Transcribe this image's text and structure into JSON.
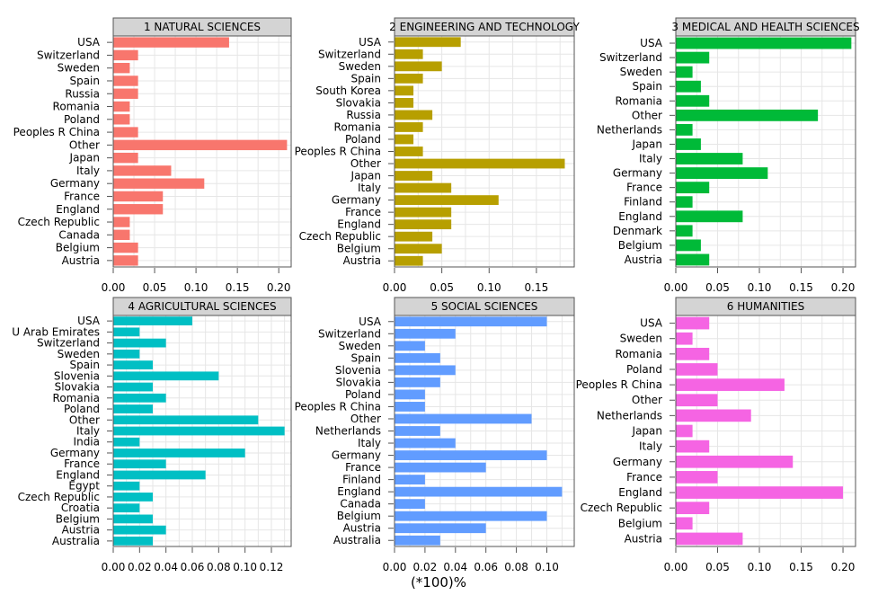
{
  "footer_label": "(*100)%",
  "colors": {
    "strip_bg": "#d4d4d4",
    "strip_border": "#555555",
    "grid": "#e6e6e6",
    "axis": "#555555"
  },
  "chart_data": [
    {
      "type": "bar",
      "orientation": "horizontal",
      "title": "1 NATURAL SCIENCES",
      "color": "#f8766d",
      "xlim": [
        0,
        0.215
      ],
      "xticks": [
        0,
        0.05,
        0.1,
        0.15,
        0.2
      ],
      "xtick_labels": [
        "0.00",
        "0.05",
        "0.10",
        "0.15",
        "0.20"
      ],
      "categories": [
        "USA",
        "Switzerland",
        "Sweden",
        "Spain",
        "Russia",
        "Romania",
        "Poland",
        "Peoples R China",
        "Other",
        "Japan",
        "Italy",
        "Germany",
        "France",
        "England",
        "Czech Republic",
        "Canada",
        "Belgium",
        "Austria"
      ],
      "values": [
        0.14,
        0.03,
        0.02,
        0.03,
        0.03,
        0.02,
        0.02,
        0.03,
        0.21,
        0.03,
        0.07,
        0.11,
        0.06,
        0.06,
        0.02,
        0.02,
        0.03,
        0.03
      ]
    },
    {
      "type": "bar",
      "orientation": "horizontal",
      "title": "2 ENGINEERING AND TECHNOLOGY",
      "color": "#b79f00",
      "xlim": [
        0,
        0.19
      ],
      "xticks": [
        0,
        0.05,
        0.1,
        0.15
      ],
      "xtick_labels": [
        "0.00",
        "0.05",
        "0.10",
        "0.15"
      ],
      "categories": [
        "USA",
        "Switzerland",
        "Sweden",
        "Spain",
        "South Korea",
        "Slovakia",
        "Russia",
        "Romania",
        "Poland",
        "Peoples R China",
        "Other",
        "Japan",
        "Italy",
        "Germany",
        "France",
        "England",
        "Czech Republic",
        "Belgium",
        "Austria"
      ],
      "values": [
        0.07,
        0.03,
        0.05,
        0.03,
        0.02,
        0.02,
        0.04,
        0.03,
        0.02,
        0.03,
        0.18,
        0.04,
        0.06,
        0.11,
        0.06,
        0.06,
        0.04,
        0.05,
        0.03
      ]
    },
    {
      "type": "bar",
      "orientation": "horizontal",
      "title": "3 MEDICAL AND HEALTH SCIENCES",
      "color": "#00ba38",
      "xlim": [
        0,
        0.215
      ],
      "xticks": [
        0,
        0.05,
        0.1,
        0.15,
        0.2
      ],
      "xtick_labels": [
        "0.00",
        "0.05",
        "0.10",
        "0.15",
        "0.20"
      ],
      "categories": [
        "USA",
        "Switzerland",
        "Sweden",
        "Spain",
        "Romania",
        "Other",
        "Netherlands",
        "Japan",
        "Italy",
        "Germany",
        "France",
        "Finland",
        "England",
        "Denmark",
        "Belgium",
        "Austria"
      ],
      "values": [
        0.21,
        0.04,
        0.02,
        0.03,
        0.04,
        0.17,
        0.02,
        0.03,
        0.08,
        0.11,
        0.04,
        0.02,
        0.08,
        0.02,
        0.03,
        0.04
      ]
    },
    {
      "type": "bar",
      "orientation": "horizontal",
      "title": "4 AGRICULTURAL SCIENCES",
      "color": "#00bfc4",
      "xlim": [
        0,
        0.135
      ],
      "xticks": [
        0,
        0.02,
        0.04,
        0.06,
        0.08,
        0.1,
        0.12
      ],
      "xtick_labels": [
        "0.00",
        "0.02",
        "0.04",
        "0.06",
        "0.08",
        "0.10",
        "0.12"
      ],
      "categories": [
        "USA",
        "U Arab Emirates",
        "Switzerland",
        "Sweden",
        "Spain",
        "Slovenia",
        "Slovakia",
        "Romania",
        "Poland",
        "Other",
        "Italy",
        "India",
        "Germany",
        "France",
        "England",
        "Egypt",
        "Czech Republic",
        "Croatia",
        "Belgium",
        "Austria",
        "Australia"
      ],
      "values": [
        0.06,
        0.02,
        0.04,
        0.02,
        0.03,
        0.08,
        0.03,
        0.04,
        0.03,
        0.11,
        0.13,
        0.02,
        0.1,
        0.04,
        0.07,
        0.02,
        0.03,
        0.02,
        0.03,
        0.04,
        0.03
      ]
    },
    {
      "type": "bar",
      "orientation": "horizontal",
      "title": "5 SOCIAL SCIENCES",
      "color": "#619cff",
      "xlim": [
        0,
        0.118
      ],
      "xticks": [
        0,
        0.02,
        0.04,
        0.06,
        0.08,
        0.1
      ],
      "xtick_labels": [
        "0.00",
        "0.02",
        "0.04",
        "0.06",
        "0.08",
        "0.10"
      ],
      "categories": [
        "USA",
        "Switzerland",
        "Sweden",
        "Spain",
        "Slovenia",
        "Slovakia",
        "Poland",
        "Peoples R China",
        "Other",
        "Netherlands",
        "Italy",
        "Germany",
        "France",
        "Finland",
        "England",
        "Canada",
        "Belgium",
        "Austria",
        "Australia"
      ],
      "values": [
        0.1,
        0.04,
        0.02,
        0.03,
        0.04,
        0.03,
        0.02,
        0.02,
        0.09,
        0.03,
        0.04,
        0.1,
        0.06,
        0.02,
        0.11,
        0.02,
        0.1,
        0.06,
        0.03
      ]
    },
    {
      "type": "bar",
      "orientation": "horizontal",
      "title": "6 HUMANITIES",
      "color": "#f564e3",
      "xlim": [
        0,
        0.215
      ],
      "xticks": [
        0,
        0.05,
        0.1,
        0.15,
        0.2
      ],
      "xtick_labels": [
        "0.00",
        "0.05",
        "0.10",
        "0.15",
        "0.20"
      ],
      "categories": [
        "USA",
        "Sweden",
        "Romania",
        "Poland",
        "Peoples R China",
        "Other",
        "Netherlands",
        "Japan",
        "Italy",
        "Germany",
        "France",
        "England",
        "Czech Republic",
        "Belgium",
        "Austria"
      ],
      "values": [
        0.04,
        0.02,
        0.04,
        0.05,
        0.13,
        0.05,
        0.09,
        0.02,
        0.04,
        0.14,
        0.05,
        0.2,
        0.04,
        0.02,
        0.08
      ]
    }
  ]
}
